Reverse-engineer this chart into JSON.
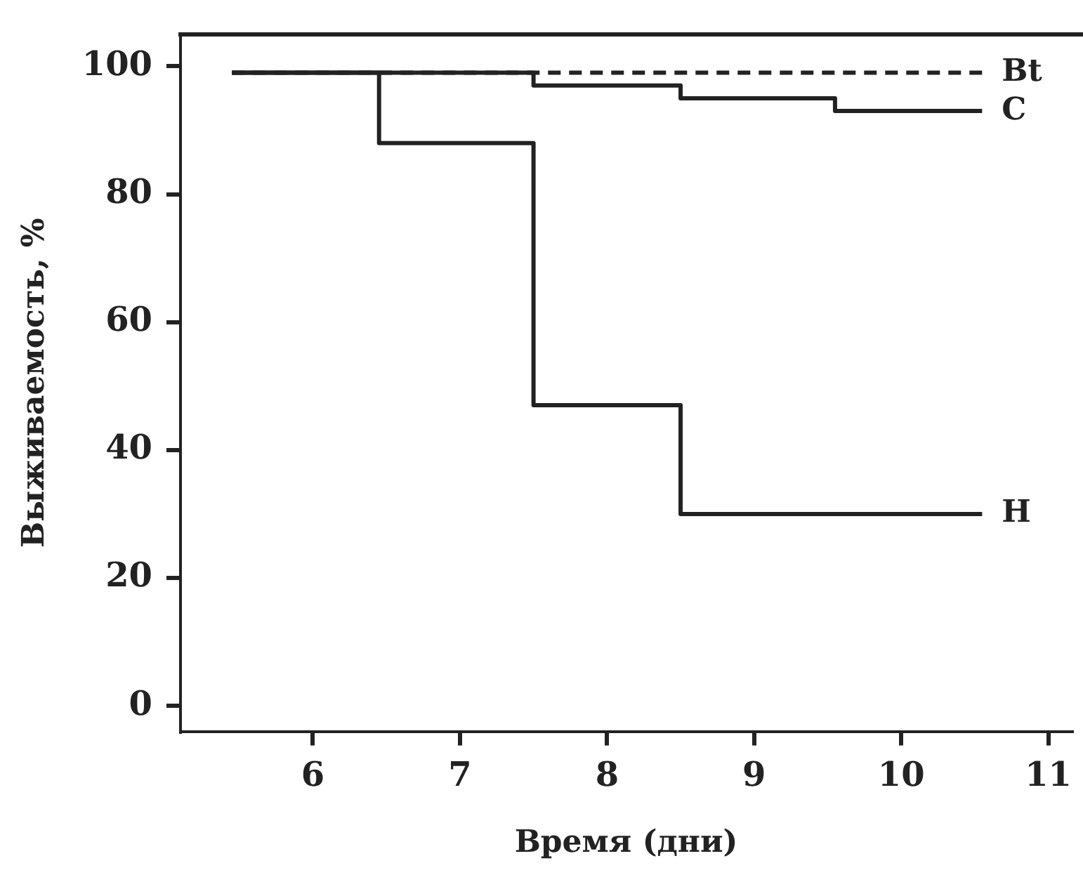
{
  "chart_data": {
    "type": "step",
    "xlabel": "Время (дни)",
    "ylabel": "Выживаемость, %",
    "xlim": [
      5.1,
      11.16
    ],
    "ylim": [
      -4,
      105
    ],
    "xticks": [
      6,
      7,
      8,
      9,
      10,
      11
    ],
    "yticks": [
      0,
      20,
      40,
      60,
      80,
      100
    ],
    "grid": false,
    "legend": false,
    "marker": "none",
    "series": [
      {
        "name": "Bt",
        "color": "#222222",
        "line_style": "dashed",
        "x": [
          5.45,
          10.55
        ],
        "values": [
          99,
          99
        ]
      },
      {
        "name": "C",
        "color": "#222222",
        "line_style": "solid",
        "x": [
          5.45,
          7.5,
          8.5,
          9.55,
          10.55
        ],
        "values": [
          99,
          97,
          95,
          93,
          93
        ]
      },
      {
        "name": "H",
        "color": "#222222",
        "line_style": "solid",
        "x": [
          5.45,
          6.45,
          7.5,
          8.5,
          10.55
        ],
        "values": [
          99,
          88,
          47,
          30,
          30
        ]
      }
    ]
  }
}
